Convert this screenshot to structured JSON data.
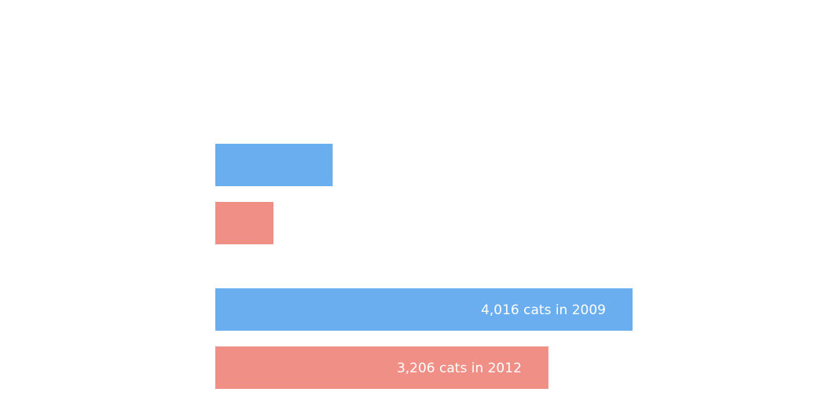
{
  "chart_data": {
    "type": "bar",
    "orientation": "horizontal",
    "title": "",
    "xlabel": "",
    "ylabel": "",
    "grid": false,
    "bars": [
      {
        "group": 0,
        "color": "#6aaef0",
        "value": 1130,
        "label": ""
      },
      {
        "group": 0,
        "color": "#ef8f86",
        "value": 560,
        "label": ""
      },
      {
        "group": 1,
        "color": "#6aaef0",
        "value": 4016,
        "label": "4,016 cats in 2009"
      },
      {
        "group": 1,
        "color": "#ef8f86",
        "value": 3206,
        "label": "3,206 cats in 2012"
      }
    ]
  }
}
